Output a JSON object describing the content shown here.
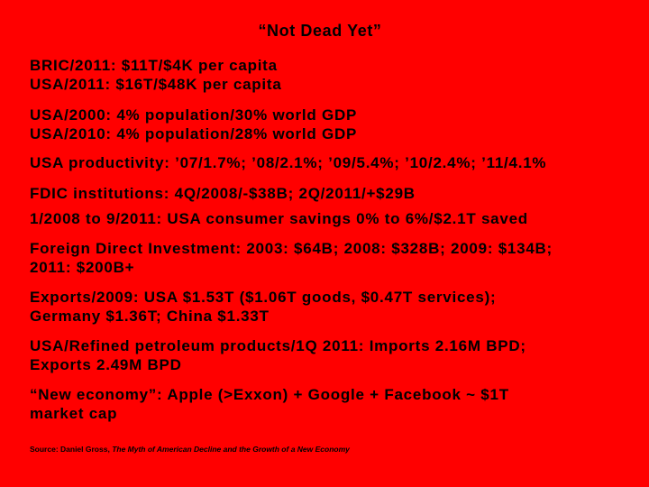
{
  "title": "“Not Dead Yet”",
  "paragraphs": [
    [
      "BRIC/2011: $11T/$4K per capita",
      "USA/2011: $16T/$48K per capita"
    ],
    [
      "USA/2000: 4% population/30% world GDP",
      "USA/2010: 4% population/28% world GDP"
    ],
    [
      "USA productivity: ’07/1.7%; ’08/2.1%; ’09/5.4%; ’10/2.4%; ’11/4.1%"
    ],
    [
      "FDIC institutions: 4Q/2008/-$38B; 2Q/2011/+$29B"
    ],
    [
      "1/2008 to 9/2011: USA consumer savings 0% to 6%/$2.1T saved"
    ],
    [
      "Foreign Direct Investment: 2003: $64B; 2008: $328B; 2009: $134B;",
      "2011: $200B+"
    ],
    [
      "Exports/2009: USA $1.53T ($1.06T goods, $0.47T services);",
      "Germany $1.36T; China $1.33T"
    ],
    [
      "USA/Refined petroleum products/1Q 2011: Imports 2.16M BPD;",
      "Exports 2.49M BPD"
    ],
    [
      "“New economy”: Apple (>Exxon) + Google + Facebook ~ $1T",
      "market cap"
    ]
  ],
  "source": {
    "prefix": "Source: Daniel Gross,",
    "book": "The Myth of American Decline and the Growth of a New Economy"
  }
}
